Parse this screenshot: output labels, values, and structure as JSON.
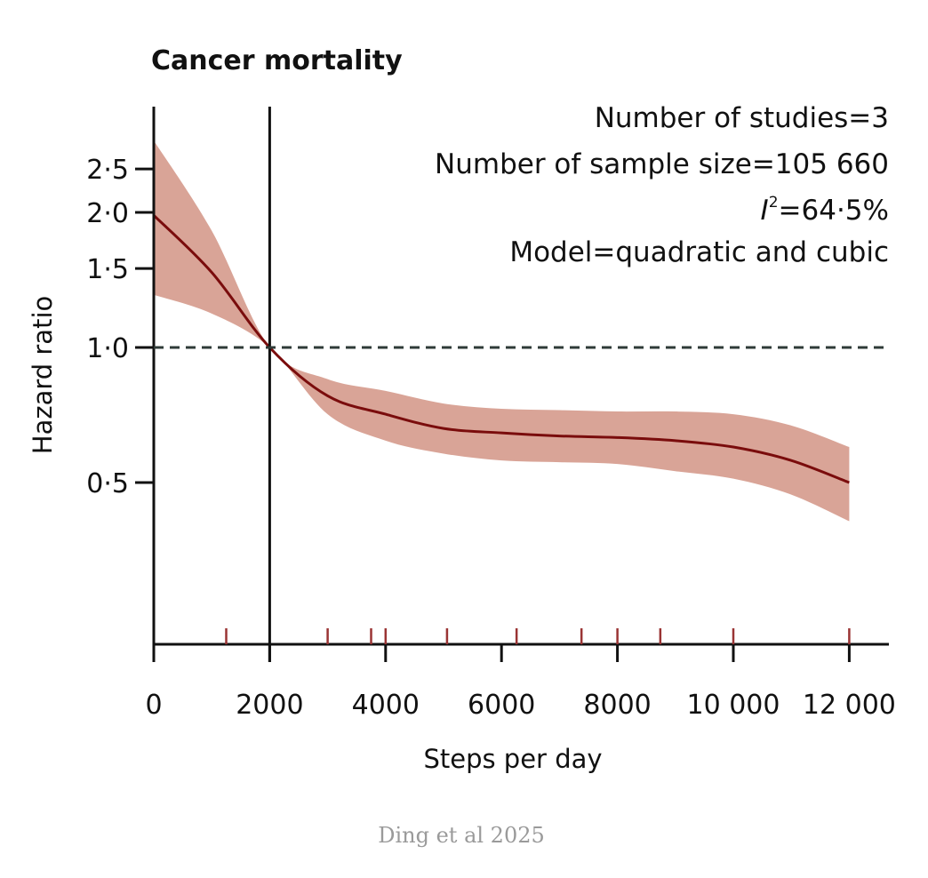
{
  "chart_data": {
    "type": "line",
    "title": "Cancer mortality",
    "xlabel": "Steps per day",
    "ylabel": "Hazard ratio",
    "yscale": "log",
    "xlim": [
      0,
      12800
    ],
    "ylim": [
      0.22,
      3.4
    ],
    "grid": false,
    "x_ticks": [
      0,
      2000,
      4000,
      6000,
      8000,
      10000,
      12000
    ],
    "x_tick_labels": [
      "0",
      "2000",
      "4000",
      "6000",
      "8000",
      "10 000",
      "12 000"
    ],
    "y_ticks": [
      0.5,
      1.0,
      1.5,
      2.0,
      2.5
    ],
    "y_tick_labels": [
      "0·5",
      "1·0",
      "1·5",
      "2·0",
      "2·5"
    ],
    "reference_x": 2000,
    "reference_y": 1.0,
    "annotations": [
      "Number of studies=3",
      "Number of sample size=105 660",
      "=64·5%",
      "Model=quadratic and cubic"
    ],
    "i2_symbol": "I",
    "i2_superscript": "2",
    "series": [
      {
        "name": "Hazard ratio",
        "x": [
          0,
          1000,
          2000,
          3000,
          4000,
          5000,
          6000,
          7000,
          8000,
          9000,
          10000,
          11000,
          12000
        ],
        "y": [
          1.97,
          1.47,
          1.0,
          0.78,
          0.71,
          0.66,
          0.645,
          0.635,
          0.63,
          0.62,
          0.6,
          0.56,
          0.5
        ],
        "lower": [
          1.31,
          1.19,
          1.0,
          0.71,
          0.62,
          0.58,
          0.56,
          0.555,
          0.55,
          0.53,
          0.51,
          0.47,
          0.41
        ],
        "upper": [
          2.89,
          1.82,
          1.0,
          0.85,
          0.8,
          0.75,
          0.73,
          0.725,
          0.72,
          0.72,
          0.71,
          0.67,
          0.6
        ]
      }
    ],
    "rug_x": [
      1250,
      3000,
      3750,
      4000,
      5060,
      6260,
      7380,
      8000,
      8740,
      10000,
      12000
    ]
  },
  "caption": "Ding et al 2025",
  "colors": {
    "line": "#7a0c0c",
    "band": "#d9a497",
    "rug": "#9a3434",
    "axis": "#111111",
    "dashed": "#2f3b38",
    "caption": "#9a9a9a"
  }
}
